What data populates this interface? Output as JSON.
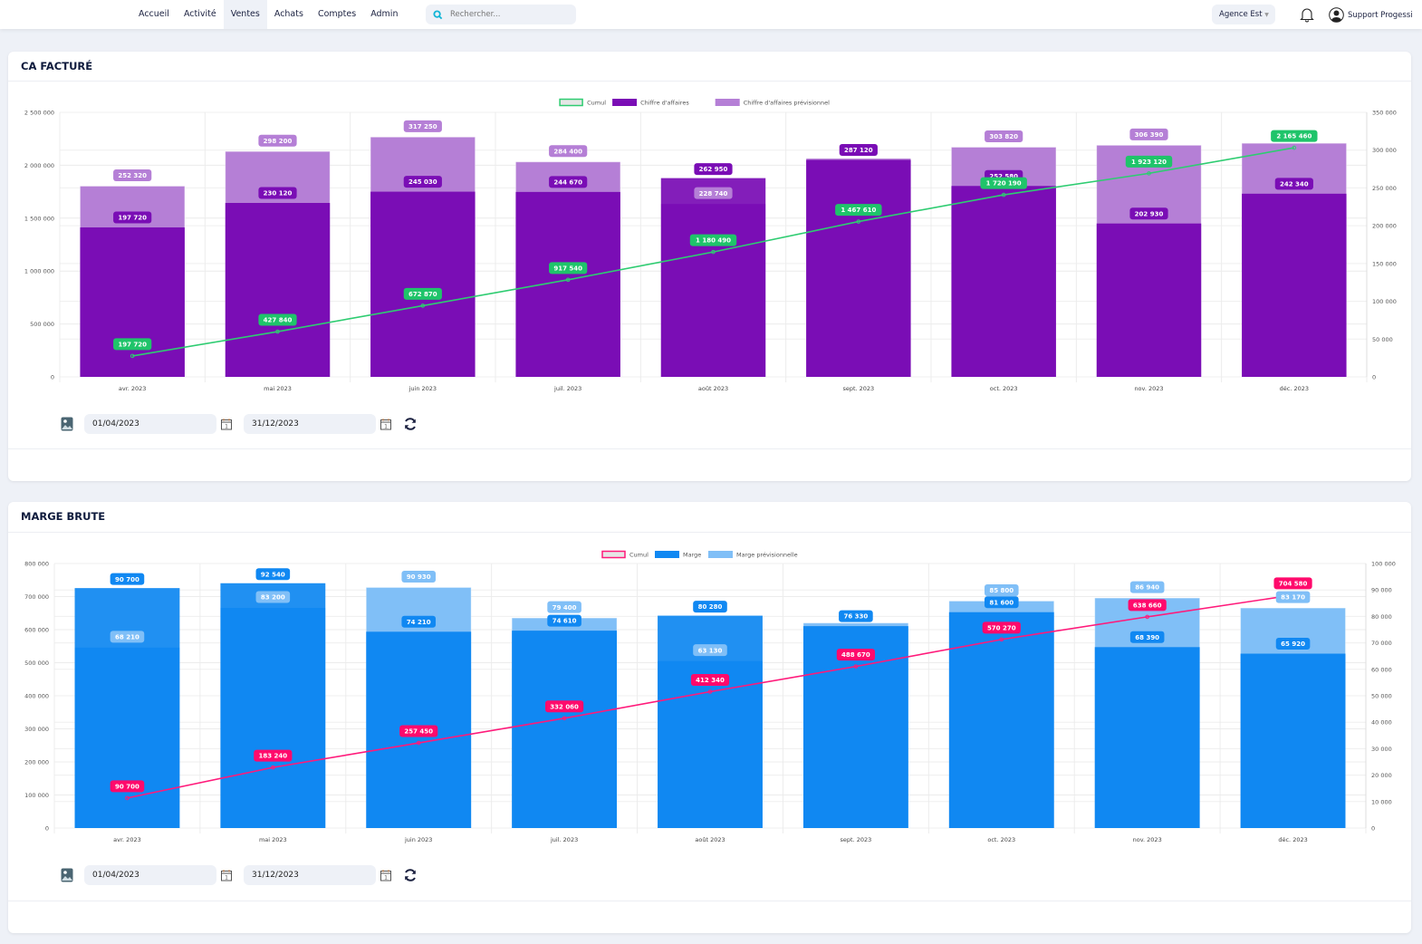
{
  "nav": {
    "items": [
      {
        "label": "Accueil"
      },
      {
        "label": "Activité"
      },
      {
        "label": "Ventes",
        "active": true
      },
      {
        "label": "Achats"
      },
      {
        "label": "Comptes"
      },
      {
        "label": "Admin"
      }
    ],
    "search_placeholder": "Rechercher...",
    "agency": "Agence Est",
    "user": "Support Progessi"
  },
  "cards": [
    {
      "title": "CA FACTURÉ",
      "date_from": "01/04/2023",
      "date_to": "31/12/2023"
    },
    {
      "title": "MARGE BRUTE",
      "date_from": "01/04/2023",
      "date_to": "31/12/2023"
    }
  ],
  "chart_data": [
    {
      "type": "bar",
      "categories": [
        "avr. 2023",
        "mai 2023",
        "juin 2023",
        "juil. 2023",
        "août 2023",
        "sept. 2023",
        "oct. 2023",
        "nov. 2023",
        "déc. 2023"
      ],
      "legend": "top",
      "grid": true,
      "y_left": {
        "range": [
          0,
          2500000
        ],
        "ticks": [
          "0",
          "500000",
          "1000000",
          "1500000",
          "2000000",
          "2500000"
        ]
      },
      "y_right": {
        "range": [
          0,
          350000
        ],
        "ticks": [
          "0",
          "50000",
          "100000",
          "150000",
          "200000",
          "250000",
          "300000",
          "350000"
        ]
      },
      "series": [
        {
          "name": "Cumul",
          "kind": "line",
          "axis": "left",
          "color": "#2ecc71",
          "label_color": "#1fc46a",
          "values": [
            197720,
            427840,
            672870,
            917540,
            1180490,
            1467610,
            1720190,
            1923120,
            2165460
          ],
          "labels": [
            "197 720",
            "427 840",
            "672 870",
            "917 540",
            "1 180 490",
            "1 467 610",
            "1 720 190",
            "1 923 120",
            "2 165 460"
          ]
        },
        {
          "name": "Chiffre d'affaires",
          "kind": "bar",
          "axis": "right",
          "color": "#7a0db5",
          "values": [
            197720,
            230120,
            245030,
            244670,
            262950,
            287120,
            252580,
            202930,
            242340
          ],
          "labels": [
            "197 720",
            "230 120",
            "245 030",
            "244 670",
            "262 950",
            "287 120",
            "252 580",
            "202 930",
            "242 340"
          ]
        },
        {
          "name": "Chiffre d'affaires prévisionnel",
          "kind": "bar",
          "axis": "right",
          "color": "#b57fd6",
          "values": [
            252320,
            298200,
            317250,
            284400,
            228740,
            289000,
            303820,
            306390,
            309000
          ],
          "labels": [
            "252 320",
            "298 200",
            "317 250",
            "284 400",
            "228 740",
            "",
            "303 820",
            "306 390",
            ""
          ]
        }
      ]
    },
    {
      "type": "bar",
      "categories": [
        "avr. 2023",
        "mai 2023",
        "juin 2023",
        "juil. 2023",
        "août 2023",
        "sept. 2023",
        "oct. 2023",
        "nov. 2023",
        "déc. 2023"
      ],
      "legend": "top",
      "grid": true,
      "y_left": {
        "range": [
          0,
          800000
        ],
        "ticks": [
          "0",
          "100000",
          "200000",
          "300000",
          "400000",
          "500000",
          "600000",
          "700000",
          "800000"
        ]
      },
      "y_right": {
        "range": [
          0,
          100000
        ],
        "ticks": [
          "0",
          "10000",
          "20000",
          "30000",
          "40000",
          "50000",
          "60000",
          "70000",
          "80000",
          "90000",
          "100000"
        ]
      },
      "series": [
        {
          "name": "Cumul",
          "kind": "line",
          "axis": "left",
          "color": "#ff1a7a",
          "label_color": "#ff0a6c",
          "values": [
            90700,
            183240,
            257450,
            332060,
            412340,
            488670,
            570270,
            638660,
            704580
          ],
          "labels": [
            "90 700",
            "183 240",
            "257 450",
            "332 060",
            "412 340",
            "488 670",
            "570 270",
            "638 660",
            "704 580"
          ]
        },
        {
          "name": "Marge",
          "kind": "bar",
          "axis": "right",
          "color": "#1088f2",
          "values": [
            90700,
            92540,
            74210,
            74610,
            80280,
            76330,
            81600,
            68390,
            65920
          ],
          "labels": [
            "90 700",
            "92 540",
            "74 210",
            "74 610",
            "80 280",
            "76 330",
            "81 600",
            "68 390",
            "65 920"
          ]
        },
        {
          "name": "Marge prévisionnelle",
          "kind": "bar",
          "axis": "right",
          "color": "#80bff7",
          "values": [
            68210,
            83200,
            90930,
            79400,
            63130,
            77500,
            85800,
            86940,
            83170
          ],
          "labels": [
            "68 210",
            "83 200",
            "90 930",
            "79 400",
            "63 130",
            "",
            "85 800",
            "86 940",
            "83 170"
          ]
        }
      ]
    }
  ]
}
